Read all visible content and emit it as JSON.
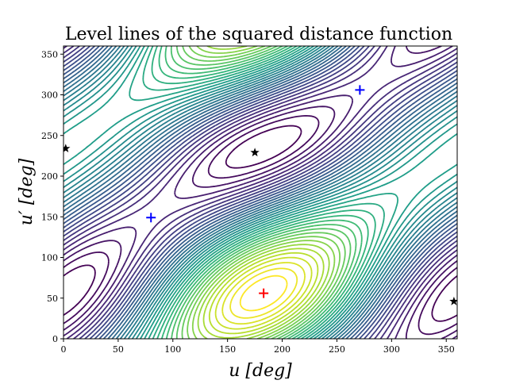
{
  "chart_data": {
    "type": "contour",
    "title": "Level lines of the squared distance function",
    "xlabel": "u [deg]",
    "ylabel": "u′ [deg]",
    "xlim": [
      0,
      360
    ],
    "ylim": [
      0,
      360
    ],
    "xticks": [
      "0",
      "50",
      "100",
      "150",
      "200",
      "250",
      "300",
      "350"
    ],
    "yticks": [
      "0",
      "50",
      "100",
      "150",
      "200",
      "250",
      "300",
      "350"
    ],
    "colormap": "viridis",
    "grid": false,
    "markers": [
      {
        "kind": "plus",
        "color": "#0000ff",
        "x": 80,
        "y": 149
      },
      {
        "kind": "plus",
        "color": "#0000ff",
        "x": 271,
        "y": 306
      },
      {
        "kind": "plus",
        "color": "#ff0000",
        "x": 183,
        "y": 56
      },
      {
        "kind": "star",
        "color": "#000000",
        "x": 2,
        "y": 234
      },
      {
        "kind": "star",
        "color": "#000000",
        "x": 175,
        "y": 229
      },
      {
        "kind": "star",
        "color": "#000000",
        "x": 357,
        "y": 46
      }
    ]
  }
}
